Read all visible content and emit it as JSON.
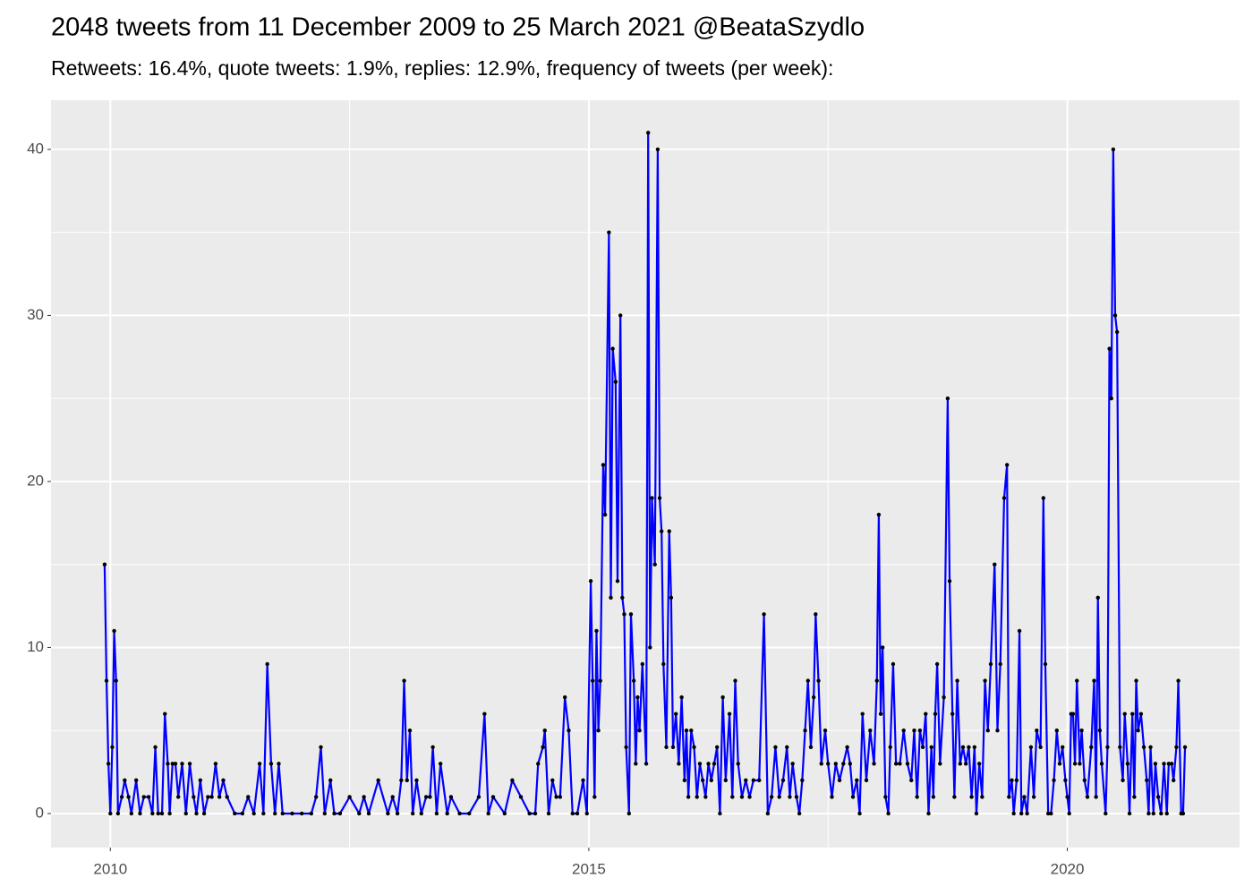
{
  "chart_data": {
    "type": "line",
    "title": "2048 tweets from 11 December 2009 to 25 March 2021 @BeataSzydlo",
    "subtitle": "Retweets: 16.4%, quote tweets: 1.9%, replies: 12.9%, frequency of tweets (per week):",
    "x": [
      2009.94,
      2009.96,
      2009.98,
      2010.0,
      2010.02,
      2010.04,
      2010.06,
      2010.08,
      2010.12,
      2010.15,
      2010.19,
      2010.22,
      2010.27,
      2010.31,
      2010.35,
      2010.4,
      2010.44,
      2010.47,
      2010.5,
      2010.54,
      2010.57,
      2010.6,
      2010.62,
      2010.65,
      2010.68,
      2010.71,
      2010.75,
      2010.79,
      2010.83,
      2010.87,
      2010.9,
      2010.94,
      2010.98,
      2011.02,
      2011.06,
      2011.1,
      2011.14,
      2011.18,
      2011.22,
      2011.3,
      2011.38,
      2011.44,
      2011.5,
      2011.56,
      2011.6,
      2011.64,
      2011.68,
      2011.72,
      2011.76,
      2011.8,
      2011.9,
      2012.0,
      2012.1,
      2012.15,
      2012.2,
      2012.24,
      2012.3,
      2012.34,
      2012.4,
      2012.5,
      2012.6,
      2012.65,
      2012.7,
      2012.8,
      2012.9,
      2012.95,
      2013.0,
      2013.04,
      2013.07,
      2013.1,
      2013.13,
      2013.16,
      2013.2,
      2013.25,
      2013.3,
      2013.34,
      2013.37,
      2013.41,
      2013.45,
      2013.52,
      2013.56,
      2013.65,
      2013.75,
      2013.85,
      2013.91,
      2013.95,
      2014.0,
      2014.12,
      2014.2,
      2014.29,
      2014.38,
      2014.44,
      2014.47,
      2014.52,
      2014.54,
      2014.58,
      2014.62,
      2014.66,
      2014.7,
      2014.75,
      2014.79,
      2014.83,
      2014.88,
      2014.94,
      2014.98,
      2015.02,
      2015.04,
      2015.06,
      2015.08,
      2015.1,
      2015.12,
      2015.15,
      2015.17,
      2015.21,
      2015.23,
      2015.25,
      2015.28,
      2015.3,
      2015.33,
      2015.35,
      2015.37,
      2015.39,
      2015.42,
      2015.44,
      2015.47,
      2015.49,
      2015.51,
      2015.53,
      2015.56,
      2015.6,
      2015.62,
      2015.64,
      2015.66,
      2015.69,
      2015.72,
      2015.74,
      2015.76,
      2015.78,
      2015.81,
      2015.84,
      2015.86,
      2015.88,
      2015.91,
      2015.94,
      2015.97,
      2016.0,
      2016.02,
      2016.04,
      2016.07,
      2016.1,
      2016.13,
      2016.16,
      2016.19,
      2016.22,
      2016.25,
      2016.28,
      2016.31,
      2016.34,
      2016.37,
      2016.4,
      2016.43,
      2016.47,
      2016.5,
      2016.53,
      2016.56,
      2016.6,
      2016.64,
      2016.68,
      2016.72,
      2016.78,
      2016.83,
      2016.87,
      2016.91,
      2016.95,
      2016.99,
      2017.03,
      2017.07,
      2017.1,
      2017.13,
      2017.17,
      2017.2,
      2017.23,
      2017.26,
      2017.29,
      2017.32,
      2017.35,
      2017.37,
      2017.4,
      2017.43,
      2017.47,
      2017.5,
      2017.54,
      2017.58,
      2017.62,
      2017.66,
      2017.7,
      2017.73,
      2017.76,
      2017.8,
      2017.83,
      2017.86,
      2017.9,
      2017.94,
      2017.98,
      2018.01,
      2018.03,
      2018.05,
      2018.07,
      2018.1,
      2018.13,
      2018.15,
      2018.18,
      2018.21,
      2018.25,
      2018.29,
      2018.33,
      2018.37,
      2018.4,
      2018.43,
      2018.46,
      2018.49,
      2018.52,
      2018.55,
      2018.58,
      2018.6,
      2018.62,
      2018.64,
      2018.67,
      2018.71,
      2018.75,
      2018.77,
      2018.8,
      2018.82,
      2018.85,
      2018.88,
      2018.91,
      2018.94,
      2018.97,
      2019.0,
      2019.03,
      2019.05,
      2019.08,
      2019.11,
      2019.14,
      2019.17,
      2019.2,
      2019.24,
      2019.27,
      2019.3,
      2019.34,
      2019.37,
      2019.39,
      2019.42,
      2019.44,
      2019.47,
      2019.5,
      2019.52,
      2019.55,
      2019.58,
      2019.62,
      2019.65,
      2019.68,
      2019.72,
      2019.75,
      2019.77,
      2019.8,
      2019.83,
      2019.86,
      2019.89,
      2019.92,
      2019.95,
      2019.98,
      2020.0,
      2020.02,
      2020.04,
      2020.06,
      2020.08,
      2020.1,
      2020.13,
      2020.15,
      2020.18,
      2020.21,
      2020.25,
      2020.28,
      2020.3,
      2020.32,
      2020.34,
      2020.36,
      2020.4,
      2020.42,
      2020.44,
      2020.46,
      2020.48,
      2020.5,
      2020.52,
      2020.55,
      2020.58,
      2020.6,
      2020.63,
      2020.65,
      2020.68,
      2020.7,
      2020.72,
      2020.74,
      2020.77,
      2020.8,
      2020.83,
      2020.85,
      2020.87,
      2020.9,
      2020.92,
      2020.95,
      2020.98,
      2021.01,
      2021.04,
      2021.06,
      2021.09,
      2021.11,
      2021.14,
      2021.16,
      2021.19,
      2021.21,
      2021.23
    ],
    "values": [
      15,
      8,
      3,
      0,
      4,
      11,
      8,
      0,
      1,
      2,
      1,
      0,
      2,
      0,
      1,
      1,
      0,
      4,
      0,
      0,
      6,
      3,
      0,
      3,
      3,
      1,
      3,
      0,
      3,
      1,
      0,
      2,
      0,
      1,
      1,
      3,
      1,
      2,
      1,
      0,
      0,
      1,
      0,
      3,
      0,
      9,
      3,
      0,
      3,
      0,
      0,
      0,
      0,
      1,
      4,
      0,
      2,
      0,
      0,
      1,
      0,
      1,
      0,
      2,
      0,
      1,
      0,
      2,
      8,
      2,
      5,
      0,
      2,
      0,
      1,
      1,
      4,
      0,
      3,
      0,
      1,
      0,
      0,
      1,
      6,
      0,
      1,
      0,
      2,
      1,
      0,
      0,
      3,
      4,
      5,
      0,
      2,
      1,
      1,
      7,
      5,
      0,
      0,
      2,
      0,
      14,
      8,
      1,
      11,
      5,
      8,
      21,
      18,
      35,
      13,
      28,
      26,
      14,
      30,
      13,
      12,
      4,
      0,
      12,
      8,
      3,
      7,
      5,
      9,
      3,
      41,
      10,
      19,
      15,
      40,
      19,
      17,
      9,
      4,
      17,
      13,
      4,
      6,
      3,
      7,
      2,
      5,
      1,
      5,
      4,
      1,
      3,
      2,
      1,
      3,
      2,
      3,
      4,
      0,
      7,
      2,
      6,
      1,
      8,
      3,
      1,
      2,
      1,
      2,
      2,
      12,
      0,
      1,
      4,
      1,
      2,
      4,
      1,
      3,
      1,
      0,
      2,
      5,
      8,
      4,
      7,
      12,
      8,
      3,
      5,
      3,
      1,
      3,
      2,
      3,
      4,
      3,
      1,
      2,
      0,
      6,
      2,
      5,
      3,
      8,
      18,
      6,
      10,
      1,
      0,
      4,
      9,
      3,
      3,
      5,
      3,
      2,
      5,
      1,
      5,
      4,
      6,
      0,
      4,
      1,
      6,
      9,
      3,
      7,
      25,
      14,
      6,
      1,
      8,
      3,
      4,
      3,
      4,
      1,
      4,
      0,
      3,
      1,
      8,
      5,
      9,
      15,
      5,
      9,
      19,
      21,
      1,
      2,
      0,
      2,
      11,
      0,
      1,
      0,
      4,
      1,
      5,
      4,
      19,
      9,
      0,
      0,
      2,
      5,
      3,
      4,
      2,
      1,
      0,
      6,
      6,
      3,
      8,
      3,
      5,
      2,
      1,
      4,
      8,
      1,
      13,
      5,
      3,
      0,
      4,
      28,
      25,
      40,
      30,
      29,
      4,
      2,
      6,
      3,
      0,
      6,
      1,
      8,
      5,
      6,
      4,
      2,
      0,
      4,
      0,
      3,
      1,
      0,
      3,
      0,
      3,
      3,
      2,
      4,
      8,
      0,
      0,
      4
    ],
    "line_color": "#0000ff",
    "point_color": "#000000",
    "xlim": [
      2009.38,
      2021.8
    ],
    "ylim": [
      -2.05,
      42.96
    ],
    "xticks": [
      2010,
      2015,
      2020
    ],
    "yticks": [
      0,
      10,
      20,
      30,
      40
    ],
    "xminor": [
      2012.5,
      2017.5
    ],
    "yminor": [
      5,
      15,
      25,
      35
    ],
    "grid": true
  }
}
